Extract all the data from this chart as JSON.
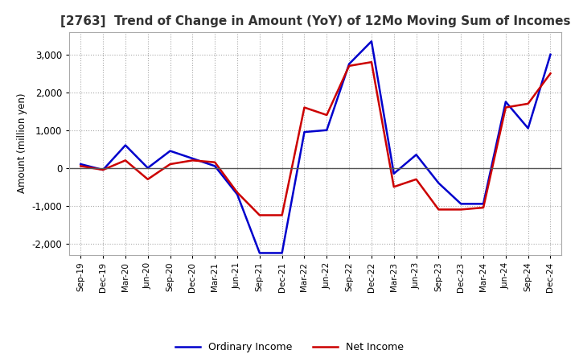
{
  "title": "[2763]  Trend of Change in Amount (YoY) of 12Mo Moving Sum of Incomes",
  "ylabel": "Amount (million yen)",
  "ylim": [
    -2300,
    3600
  ],
  "yticks": [
    -2000,
    -1000,
    0,
    1000,
    2000,
    3000
  ],
  "x_labels": [
    "Sep-19",
    "Dec-19",
    "Mar-20",
    "Jun-20",
    "Sep-20",
    "Dec-20",
    "Mar-21",
    "Jun-21",
    "Sep-21",
    "Dec-21",
    "Mar-22",
    "Jun-22",
    "Sep-22",
    "Dec-22",
    "Mar-23",
    "Jun-23",
    "Sep-23",
    "Dec-23",
    "Mar-24",
    "Jun-24",
    "Sep-24",
    "Dec-24"
  ],
  "ordinary_income": [
    100,
    -50,
    600,
    0,
    450,
    250,
    50,
    -700,
    -2250,
    -2250,
    950,
    1000,
    2750,
    3350,
    -150,
    350,
    -400,
    -950,
    -950,
    1750,
    1050,
    3000
  ],
  "net_income": [
    50,
    -50,
    200,
    -300,
    100,
    200,
    150,
    -650,
    -1250,
    -1250,
    1600,
    1400,
    2700,
    2800,
    -500,
    -300,
    -1100,
    -1100,
    -1050,
    1600,
    1700,
    2500
  ],
  "ordinary_color": "#0000cc",
  "net_color": "#cc0000",
  "grid_color": "#aaaaaa",
  "background_color": "#ffffff",
  "title_fontsize": 11,
  "legend_labels": [
    "Ordinary Income",
    "Net Income"
  ]
}
